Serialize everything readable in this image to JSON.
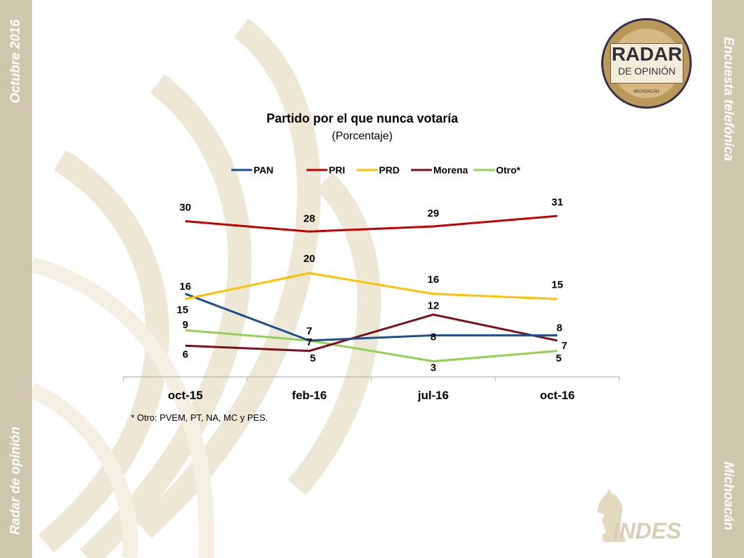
{
  "side": {
    "left_top": "Octubre 2016",
    "left_bottom": "Radar de opinión",
    "right_top": "Encuesta telefónica",
    "right_bottom": "Michoacán"
  },
  "logo": {
    "line1": "RADAR",
    "line2": "DE OPINIÓN",
    "line3": "MICHOACÁN"
  },
  "footer_logo": "INDES",
  "note": "* Otro: PVEM, PT, NA, MC y PES.",
  "colors": {
    "side_band": "#cfc7ad",
    "PAN": "#1f4e8c",
    "PRI": "#c00000",
    "PRD": "#ffc000",
    "Morena": "#7b1018",
    "Otro": "#92d050"
  },
  "chart_data": {
    "type": "line",
    "title": "Partido por el que nunca votaría",
    "subtitle": "(Porcentaje)",
    "categories": [
      "oct-15",
      "feb-16",
      "jul-16",
      "oct-16"
    ],
    "series": [
      {
        "name": "PAN",
        "color": "#1f4e8c",
        "values": [
          16,
          7,
          8,
          8
        ]
      },
      {
        "name": "PRI",
        "color": "#c00000",
        "values": [
          30,
          28,
          29,
          31
        ]
      },
      {
        "name": "PRD",
        "color": "#ffc000",
        "values": [
          15,
          20,
          16,
          15
        ]
      },
      {
        "name": "Morena",
        "color": "#7b1018",
        "values": [
          6,
          5,
          12,
          7
        ]
      },
      {
        "name": "Otro*",
        "color": "#92d050",
        "values": [
          9,
          7,
          3,
          5
        ]
      }
    ],
    "legend_position": "top",
    "grid": false,
    "ylim": [
      0,
      35
    ]
  }
}
